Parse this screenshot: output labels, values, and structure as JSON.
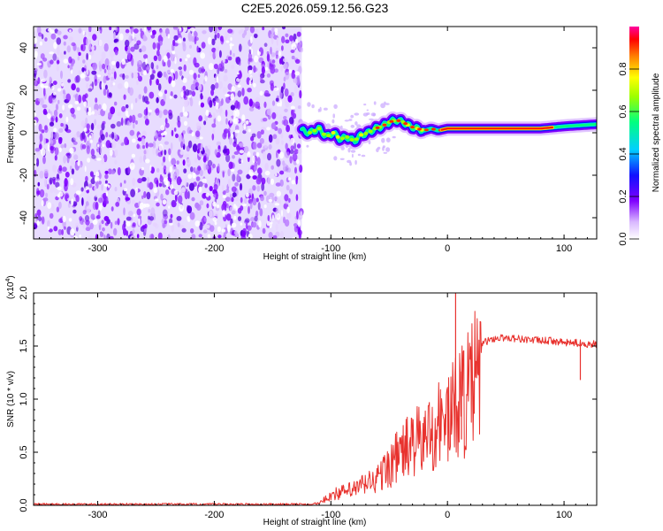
{
  "title": "C2E5.2026.059.12.56.G23",
  "chart_data": [
    {
      "type": "heatmap",
      "name": "spectrogram",
      "xlabel": "Height of straight line (km)",
      "ylabel": "Frequency (Hz)",
      "xlim": [
        -355,
        128
      ],
      "ylim": [
        -50,
        50
      ],
      "xticks": [
        -300,
        -200,
        -100,
        0,
        100
      ],
      "yticks": [
        -40,
        -20,
        0,
        20,
        40
      ],
      "noise_region_x": [
        -355,
        -125
      ],
      "signal_trace": {
        "x": [
          -125,
          -118,
          -110,
          -104,
          -98,
          -92,
          -86,
          -80,
          -74,
          -68,
          -62,
          -56,
          -50,
          -44,
          -38,
          -32,
          -26,
          -20,
          -14,
          -8,
          0,
          10,
          20,
          40,
          60,
          80,
          100,
          128
        ],
        "freq": [
          1,
          0,
          2,
          -2,
          0,
          -3,
          -2,
          -4,
          -1,
          0,
          2,
          3,
          5,
          6,
          5,
          3,
          2,
          1,
          2,
          1,
          2,
          2,
          2,
          2,
          2,
          2,
          3,
          4
        ]
      },
      "colorbar": {
        "label": "Normalized spectral amplitude",
        "ticks": [
          0.0,
          0.2,
          0.4,
          0.6,
          0.8
        ],
        "tick_labels": [
          "0.0",
          "0.2",
          "0.4",
          "0.6",
          "0.8"
        ],
        "range": [
          0,
          1
        ]
      }
    },
    {
      "type": "line",
      "name": "snr",
      "xlabel": "Height of straight line (km)",
      "ylabel": "SNR (10 * v/v)",
      "scale_label": "(x10",
      "scale_exp": "4",
      "scale_close": ")",
      "xlim": [
        -355,
        128
      ],
      "ylim": [
        0,
        2.0
      ],
      "xticks": [
        -300,
        -200,
        -100,
        0,
        100
      ],
      "yticks": [
        0.0,
        0.5,
        1.0,
        1.5,
        2.0
      ],
      "ytick_labels": [
        "0.0",
        "0.5",
        "1.0",
        "1.5",
        "2.0"
      ],
      "color": "#e8322e",
      "series": {
        "x": [
          -355,
          -300,
          -200,
          -120,
          -110,
          -100,
          -90,
          -80,
          -70,
          -60,
          -50,
          -40,
          -30,
          -20,
          -10,
          0,
          5,
          8,
          10,
          15,
          20,
          25,
          30,
          40,
          50,
          60,
          70,
          80,
          90,
          100,
          110,
          120,
          128
        ],
        "y": [
          0.01,
          0.01,
          0.01,
          0.01,
          0.02,
          0.12,
          0.15,
          0.18,
          0.25,
          0.3,
          0.45,
          0.6,
          0.7,
          0.75,
          0.9,
          1.0,
          1.05,
          1.15,
          1.3,
          1.2,
          1.35,
          1.45,
          1.53,
          1.57,
          1.58,
          1.57,
          1.56,
          1.55,
          1.55,
          1.53,
          1.53,
          1.52,
          1.52
        ]
      },
      "spikes": [
        {
          "x": 7,
          "y": 2.0
        },
        {
          "x": 12,
          "y": 0.62
        },
        {
          "x": 114,
          "y": 1.18
        }
      ]
    }
  ]
}
